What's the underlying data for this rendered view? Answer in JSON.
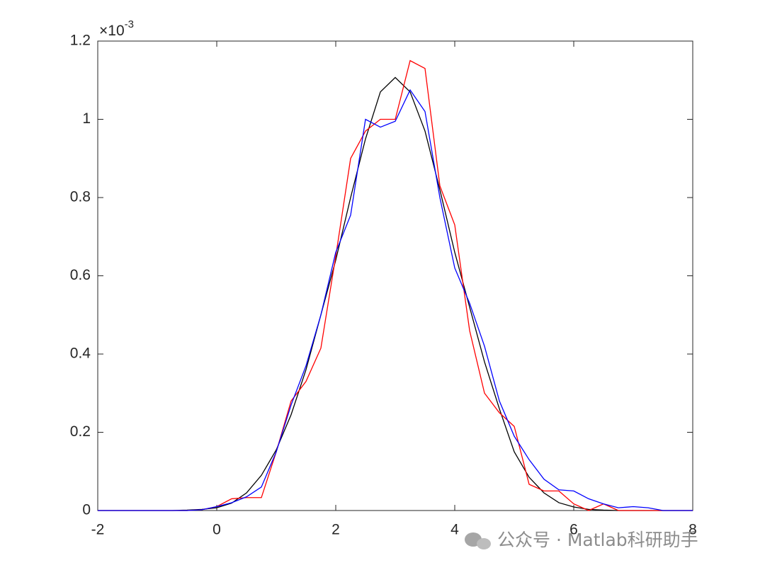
{
  "chart_data": {
    "type": "line",
    "exponent_label": {
      "base": "×10",
      "power": "-3"
    },
    "annotation": "公众号 · Matlab科研助手",
    "x": [
      -2,
      -1.75,
      -1.5,
      -1.25,
      -1,
      -0.75,
      -0.5,
      -0.25,
      0,
      0.25,
      0.5,
      0.75,
      1,
      1.25,
      1.5,
      1.75,
      2,
      2.25,
      2.5,
      2.75,
      3,
      3.25,
      3.5,
      3.75,
      4,
      4.25,
      4.5,
      4.75,
      5,
      5.25,
      5.5,
      5.75,
      6,
      6.25,
      6.5,
      6.75,
      7,
      7.25,
      7.5,
      7.75,
      8
    ],
    "series": [
      {
        "color": "#000000",
        "values": [
          0,
          0,
          0,
          0,
          0,
          0,
          0.001,
          0.003,
          0.007,
          0.019,
          0.045,
          0.09,
          0.155,
          0.245,
          0.36,
          0.5,
          0.64,
          0.8,
          0.95,
          1.07,
          1.107,
          1.07,
          0.97,
          0.82,
          0.66,
          0.52,
          0.38,
          0.26,
          0.15,
          0.085,
          0.045,
          0.02,
          0.009,
          0.003,
          0.001,
          0,
          0,
          0,
          0,
          0,
          0
        ]
      },
      {
        "color": "#ff0000",
        "values": [
          0,
          0,
          0,
          0,
          0,
          0,
          0,
          0.002,
          0.01,
          0.03,
          0.033,
          0.033,
          0.15,
          0.28,
          0.33,
          0.415,
          0.65,
          0.9,
          0.97,
          1.0,
          1.0,
          1.15,
          1.13,
          0.83,
          0.73,
          0.46,
          0.3,
          0.25,
          0.215,
          0.067,
          0.05,
          0.05,
          0.017,
          0,
          0.017,
          0,
          0,
          0,
          0,
          0,
          0
        ]
      },
      {
        "color": "#0000ff",
        "values": [
          0,
          0,
          0,
          0,
          0,
          0,
          0,
          0.002,
          0.01,
          0.02,
          0.035,
          0.06,
          0.15,
          0.27,
          0.37,
          0.5,
          0.66,
          0.755,
          1.0,
          0.98,
          0.995,
          1.075,
          1.02,
          0.8,
          0.62,
          0.53,
          0.42,
          0.28,
          0.19,
          0.13,
          0.08,
          0.053,
          0.05,
          0.03,
          0.017,
          0.007,
          0.01,
          0.007,
          0,
          0,
          0
        ]
      }
    ],
    "xlim": [
      -2,
      8
    ],
    "xticks": [
      -2,
      0,
      2,
      4,
      6,
      8
    ],
    "ylim": [
      0,
      1.2
    ],
    "yticks": [
      0,
      0.2,
      0.4,
      0.6,
      0.8,
      1,
      1.2
    ]
  }
}
